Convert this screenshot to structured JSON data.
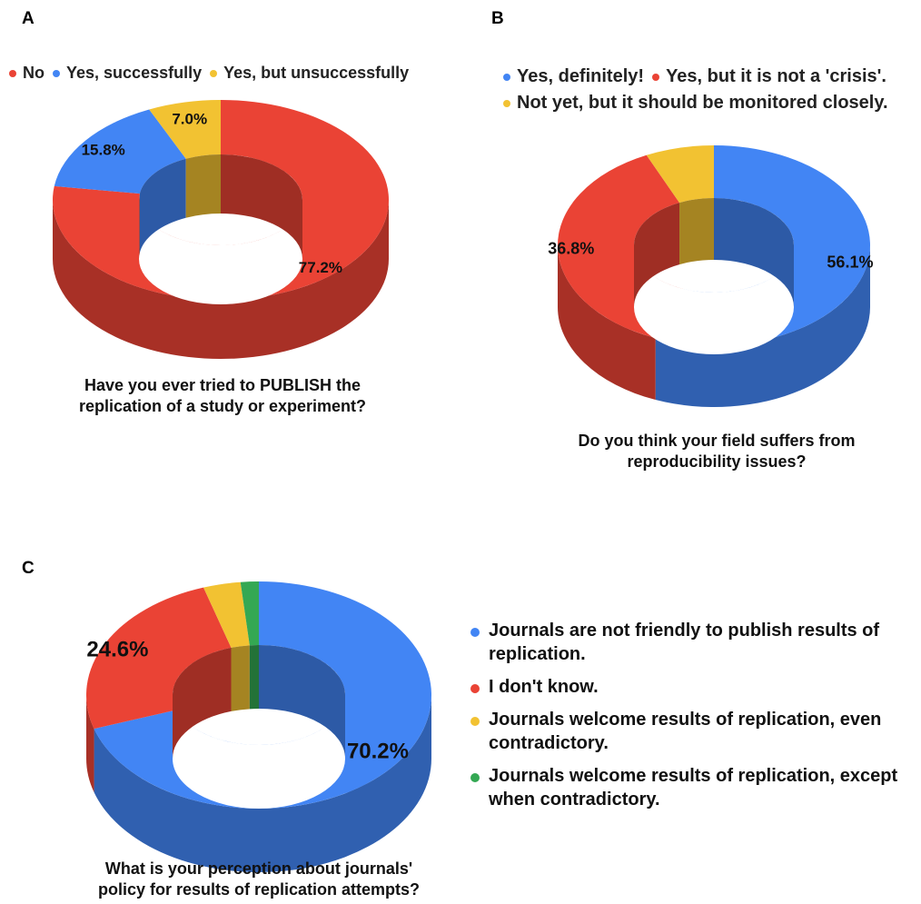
{
  "panels": [
    {
      "letter": "A",
      "legend": [
        "No",
        "Yes, successfully",
        "Yes, but unsuccessfully"
      ],
      "caption": [
        "Have you ever tried to PUBLISH the",
        "replication of a study or experiment?"
      ]
    },
    {
      "letter": "B",
      "legend": [
        "Yes, definitely!",
        "Yes, but it is not a 'crisis'.",
        "Not yet, but it should be monitored closely."
      ],
      "caption": [
        "Do you think your field suffers from",
        "reproducibility issues?"
      ]
    },
    {
      "letter": "C",
      "legend": [
        "Journals are not friendly to publish results of replication.",
        "I don't know.",
        "Journals welcome results of replication, even contradictory.",
        "Journals welcome results of replication, except when contradictory."
      ],
      "caption": [
        "What is your perception about journals'",
        "policy for results of replication attempts?"
      ]
    }
  ],
  "colors": {
    "red": "#ea4335",
    "blue": "#4285f4",
    "yellow": "#f2c232",
    "green": "#34a853"
  },
  "chart_data": [
    {
      "type": "pie",
      "title": "Have you ever tried to PUBLISH the replication of a study or experiment?",
      "categories": [
        "No",
        "Yes, successfully",
        "Yes, but unsuccessfully"
      ],
      "values": [
        77.2,
        15.8,
        7.0
      ],
      "labels": [
        "77.2%",
        "15.8%",
        "7.0%"
      ],
      "colors": [
        "#ea4335",
        "#4285f4",
        "#f2c232"
      ],
      "legend_position": "top"
    },
    {
      "type": "pie",
      "title": "Do you think your field suffers from reproducibility issues?",
      "categories": [
        "Yes, definitely!",
        "Yes, but it is not a 'crisis'.",
        "Not yet, but it should be monitored closely."
      ],
      "values": [
        56.1,
        36.8,
        7.1
      ],
      "labels": [
        "56.1%",
        "36.8%",
        ""
      ],
      "colors": [
        "#4285f4",
        "#ea4335",
        "#f2c232"
      ],
      "legend_position": "top"
    },
    {
      "type": "pie",
      "title": "What is your perception about journals' policy for results of replication attempts?",
      "categories": [
        "Journals are not friendly to publish results of replication.",
        "I don't know.",
        "Journals welcome results of replication, even contradictory.",
        "Journals welcome results of replication, except when contradictory."
      ],
      "values": [
        70.2,
        24.6,
        3.5,
        1.7
      ],
      "labels": [
        "70.2%",
        "24.6%",
        "",
        ""
      ],
      "colors": [
        "#4285f4",
        "#ea4335",
        "#f2c232",
        "#34a853"
      ],
      "legend_position": "right"
    }
  ]
}
